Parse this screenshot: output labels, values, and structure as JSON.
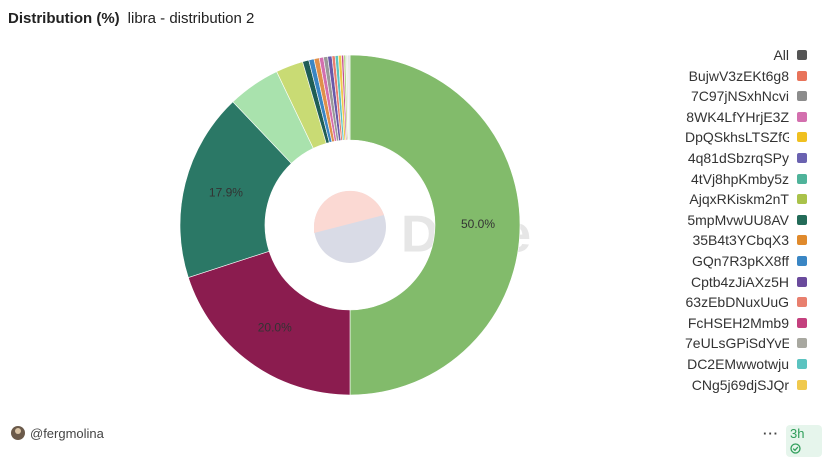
{
  "chart_data": {
    "type": "pie",
    "title": "Distribution (%)",
    "subtitle": "libra - distribution 2",
    "values": [
      50.0,
      20.0,
      17.9,
      5.0,
      2.6,
      0.6,
      0.5,
      0.5,
      0.4,
      0.4,
      0.4,
      0.3,
      0.3,
      0.3,
      0.2,
      0.2,
      0.2,
      0.2
    ],
    "value_labels": [
      "50.0%",
      "20.0%",
      "17.9%",
      null,
      null,
      null,
      null,
      null,
      null,
      null,
      null,
      null,
      null,
      null,
      null,
      null,
      null,
      null
    ],
    "colors": [
      "#82bb6b",
      "#8b1c4f",
      "#2b7866",
      "#a9e2ad",
      "#c9db74",
      "#1f5e56",
      "#3a86c4",
      "#e0904a",
      "#d36fae",
      "#999999",
      "#6a58a8",
      "#e87f6e",
      "#5bc3c0",
      "#f0c94d",
      "#c44f8e",
      "#b7d98b",
      "#e8e8e8",
      "#dddddd"
    ],
    "legend": [
      {
        "name": "All",
        "color": "#555555"
      },
      {
        "name": "BujwV3zEKt6g8",
        "color": "#e8735a"
      },
      {
        "name": "7C97jNSxhNcvi",
        "color": "#8c8c8c"
      },
      {
        "name": "8WK4LfYHrjE3Z",
        "color": "#d36fae"
      },
      {
        "name": "DpQSkhsLTSZfG",
        "color": "#f0c020"
      },
      {
        "name": "4q81dSbzrqSPy",
        "color": "#6a62b0"
      },
      {
        "name": "4tVj8hpKmby5z",
        "color": "#4fb39a"
      },
      {
        "name": "AjqxRKiskm2nT",
        "color": "#a9c24a"
      },
      {
        "name": "5mpMvwUU8AV",
        "color": "#236b58"
      },
      {
        "name": "35B4t3YCbqX3",
        "color": "#e08a2c"
      },
      {
        "name": "GQn7R3pKX8ff",
        "color": "#3a86c4"
      },
      {
        "name": "Cptb4zJiAXz5H",
        "color": "#6a4a9c"
      },
      {
        "name": "63zEbDNuxUuG",
        "color": "#e87f6e"
      },
      {
        "name": "FcHSEH2Mmb9",
        "color": "#c4407e"
      },
      {
        "name": "7eULsGPiSdYvE",
        "color": "#a8a8a0"
      },
      {
        "name": "DC2EMwwotwju",
        "color": "#5bc3c0"
      },
      {
        "name": "CNg5j69djSJQr",
        "color": "#f0c94d"
      }
    ]
  },
  "author": "@fergmolina",
  "age": "3h"
}
